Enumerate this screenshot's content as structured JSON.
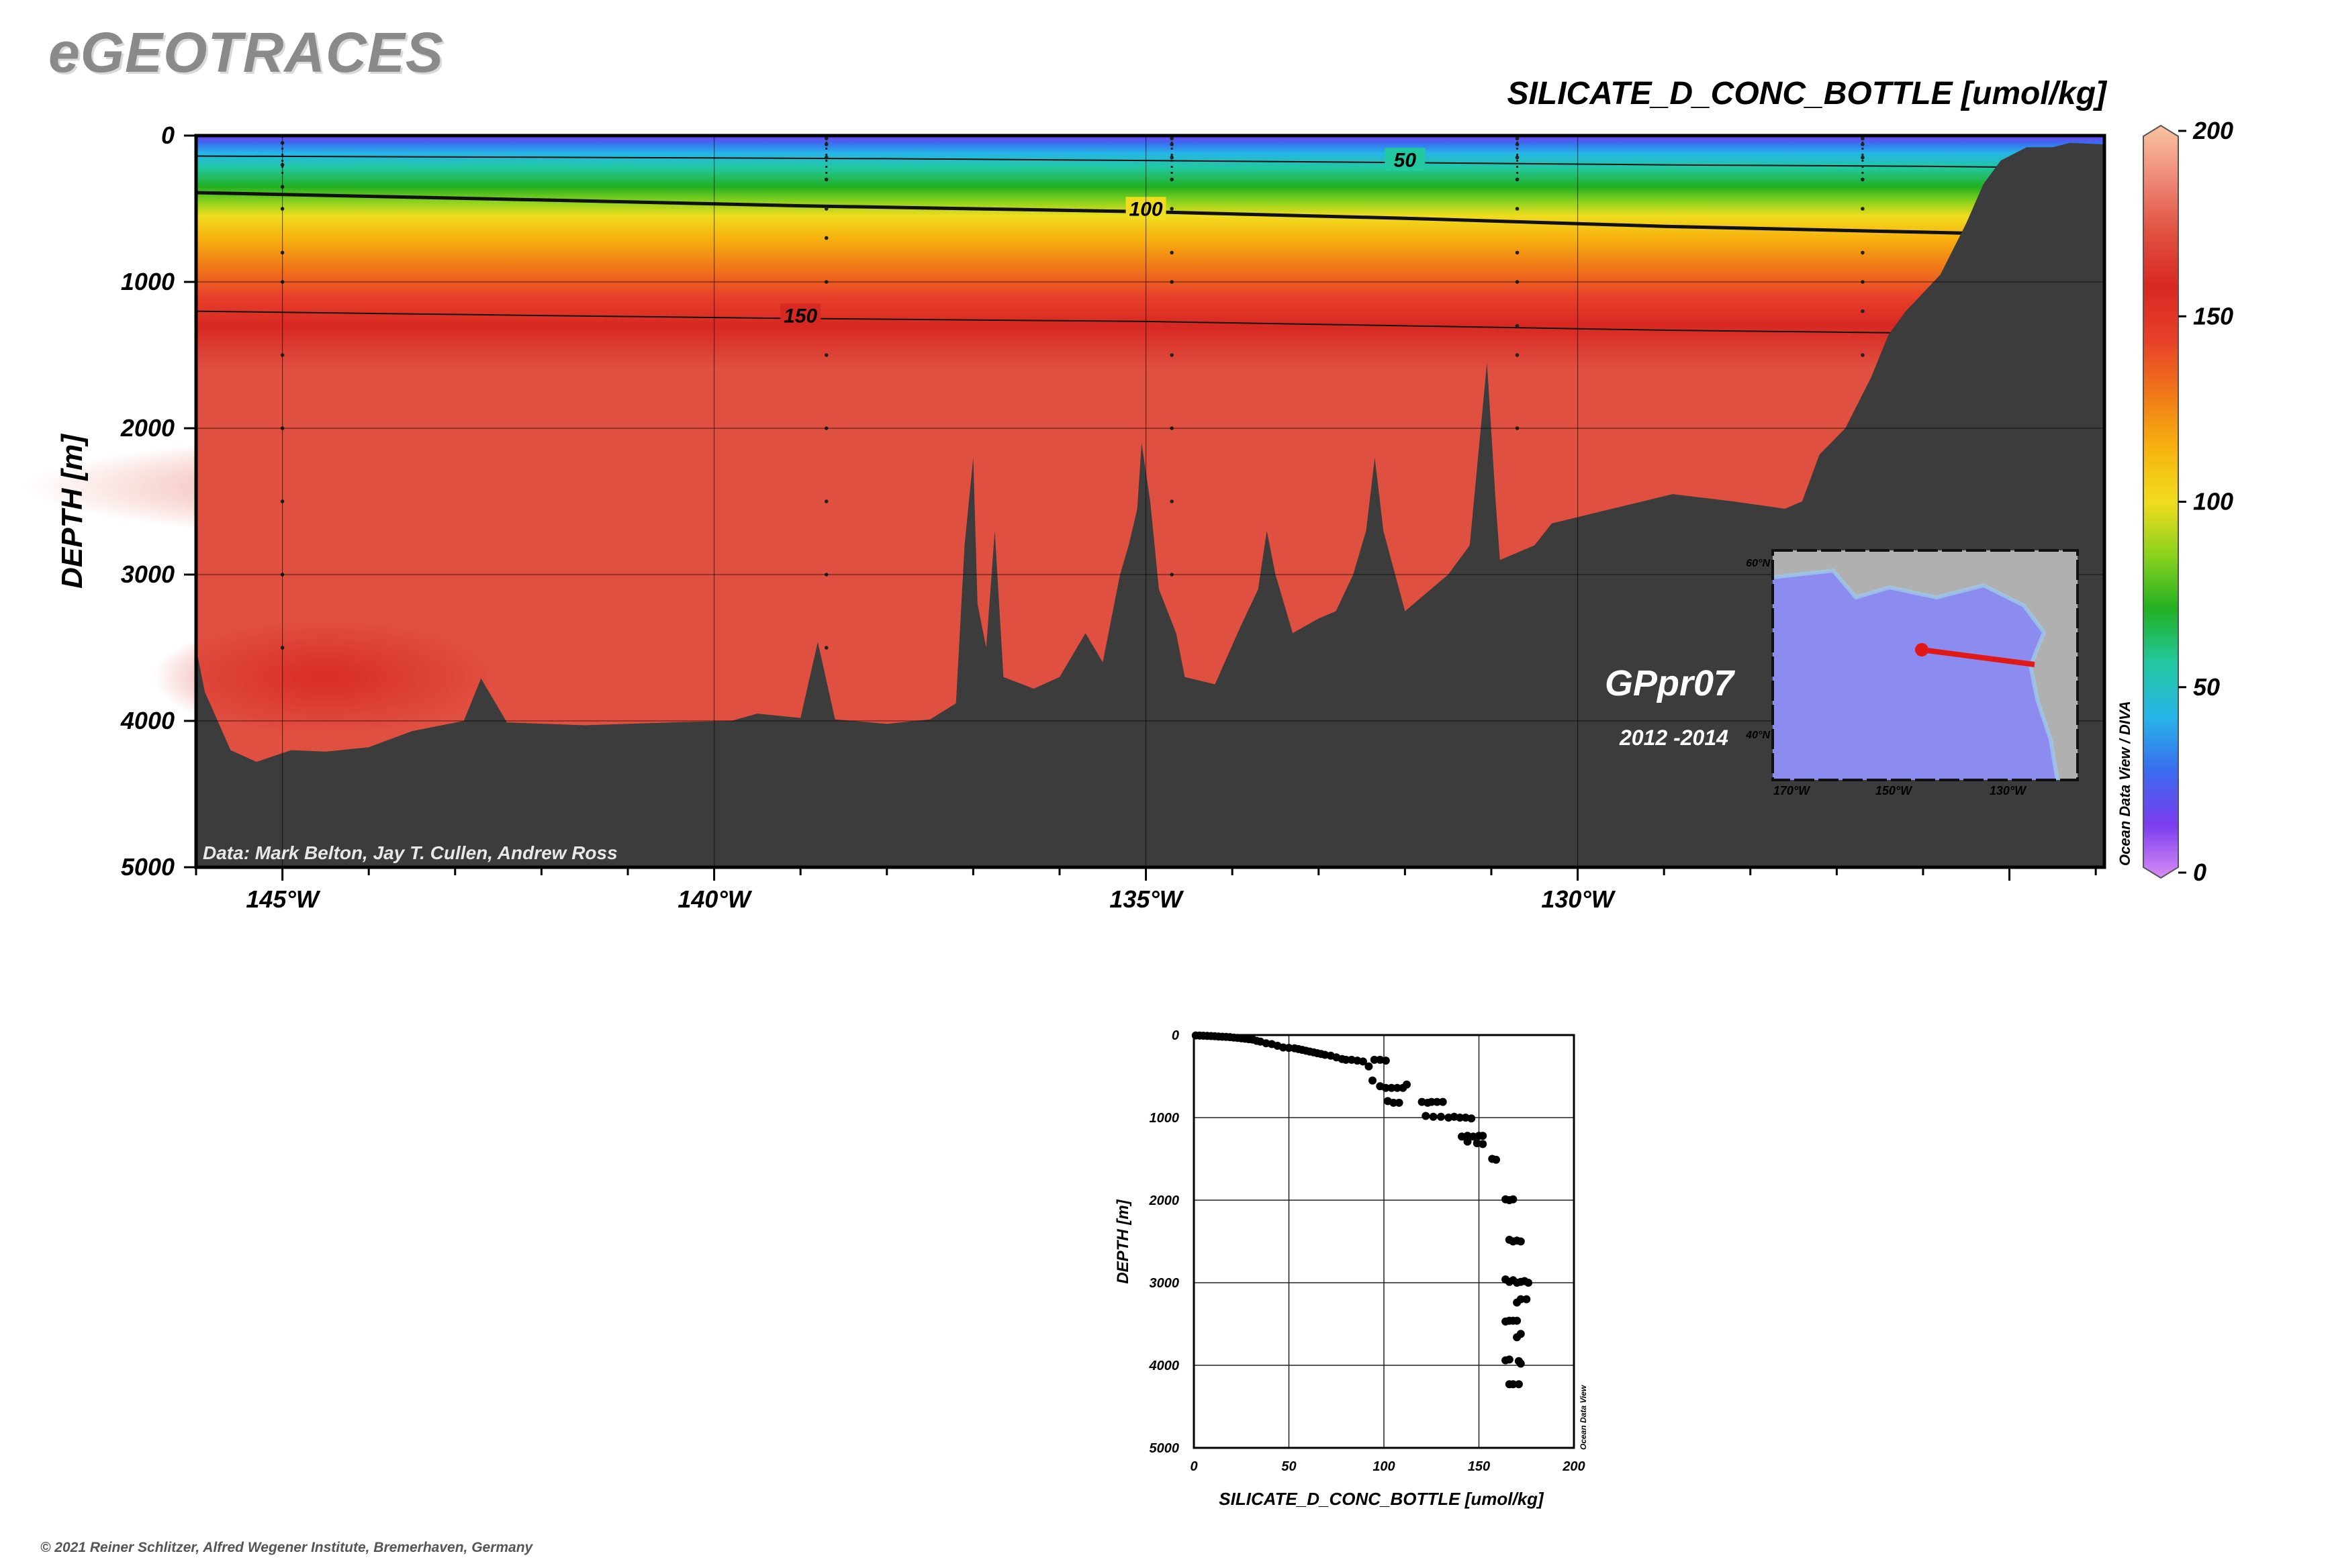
{
  "brand": "eGEOTRACES",
  "copyright": "© 2021 Reiner Schlitzer, Alfred Wegener Institute, Bremerhaven, Germany",
  "chart_data": [
    {
      "type": "heatmap",
      "title": "SILICATE_D_CONC_BOTTLE [umol/kg]",
      "ylabel": "DEPTH [m]",
      "xlabel": "",
      "xlim": [
        -146.0,
        -123.9
      ],
      "ylim": [
        5000,
        0
      ],
      "xticks": [
        -145,
        -140,
        -135,
        -130
      ],
      "xtick_labels": [
        "145°W",
        "140°W",
        "135°W",
        "130°W"
      ],
      "yticks": [
        0,
        1000,
        2000,
        3000,
        4000,
        5000
      ],
      "ytick_labels": [
        "0",
        "1000",
        "2000",
        "3000",
        "4000",
        "5000"
      ],
      "grid": true,
      "colorbar": {
        "min": 0,
        "max": 200,
        "ticks": [
          0,
          50,
          100,
          150,
          200
        ],
        "tick_labels": [
          "0",
          "50",
          "100",
          "150",
          "200"
        ],
        "colors": [
          "#d98cf5",
          "#7a3cf0",
          "#3a6cf0",
          "#26b5e8",
          "#22c8a0",
          "#22b022",
          "#8ad21e",
          "#f0dc1e",
          "#f7b20f",
          "#f07818",
          "#e8402a",
          "#d82822",
          "#e05040",
          "#ef8878",
          "#f8c4a0"
        ]
      },
      "contours": [
        {
          "value": 50,
          "label": "50",
          "points": [
            [
              -146.0,
              140
            ],
            [
              -142,
              148
            ],
            [
              -138,
              158
            ],
            [
              -135,
              170
            ],
            [
              -132,
              185
            ],
            [
              -129,
              200
            ],
            [
              -126,
              210
            ],
            [
              -124.1,
              220
            ]
          ]
        },
        {
          "value": 100,
          "label": "100",
          "points": [
            [
              -146.0,
              390
            ],
            [
              -142,
              440
            ],
            [
              -139,
              480
            ],
            [
              -135,
              520
            ],
            [
              -132,
              565
            ],
            [
              -129,
              620
            ],
            [
              -126,
              660
            ],
            [
              -124.6,
              680
            ]
          ]
        },
        {
          "value": 150,
          "label": "150",
          "points": [
            [
              -146.0,
              1200
            ],
            [
              -142,
              1230
            ],
            [
              -139,
              1250
            ],
            [
              -135,
              1270
            ],
            [
              -132,
              1300
            ],
            [
              -129,
              1330
            ],
            [
              -126,
              1350
            ],
            [
              -124.4,
              1360
            ]
          ]
        }
      ],
      "gradient_depths": [
        0,
        50,
        120,
        220,
        350,
        450,
        550,
        700,
        900,
        1100,
        1300,
        1600,
        2000,
        2800,
        3500,
        4500
      ],
      "gradient_values": [
        12,
        30,
        45,
        60,
        75,
        90,
        100,
        118,
        135,
        148,
        158,
        168,
        172,
        168,
        166,
        168
      ],
      "bathymetry": [
        [
          -146.0,
          3500
        ],
        [
          -145.9,
          3800
        ],
        [
          -145.6,
          4200
        ],
        [
          -145.3,
          4280
        ],
        [
          -144.9,
          4200
        ],
        [
          -144.5,
          4210
        ],
        [
          -144,
          4180
        ],
        [
          -143.5,
          4070
        ],
        [
          -142.9,
          4000
        ],
        [
          -142.7,
          3710
        ],
        [
          -142.4,
          4010
        ],
        [
          -141.5,
          4030
        ],
        [
          -140.5,
          4010
        ],
        [
          -139.8,
          4000
        ],
        [
          -139.5,
          3950
        ],
        [
          -139.0,
          3980
        ],
        [
          -138.8,
          3460
        ],
        [
          -138.6,
          3990
        ],
        [
          -138.0,
          4020
        ],
        [
          -137.5,
          3990
        ],
        [
          -137.2,
          3880
        ],
        [
          -137.1,
          2800
        ],
        [
          -137.0,
          2200
        ],
        [
          -136.95,
          3200
        ],
        [
          -136.85,
          3500
        ],
        [
          -136.75,
          2700
        ],
        [
          -136.65,
          3700
        ],
        [
          -136.3,
          3780
        ],
        [
          -136.0,
          3700
        ],
        [
          -135.7,
          3400
        ],
        [
          -135.5,
          3600
        ],
        [
          -135.3,
          3000
        ],
        [
          -135.2,
          2800
        ],
        [
          -135.1,
          2550
        ],
        [
          -135.05,
          2100
        ],
        [
          -134.95,
          2500
        ],
        [
          -134.85,
          3100
        ],
        [
          -134.65,
          3400
        ],
        [
          -134.55,
          3700
        ],
        [
          -134.2,
          3750
        ],
        [
          -133.9,
          3350
        ],
        [
          -133.7,
          3100
        ],
        [
          -133.6,
          2700
        ],
        [
          -133.5,
          3000
        ],
        [
          -133.3,
          3400
        ],
        [
          -133.0,
          3300
        ],
        [
          -132.8,
          3250
        ],
        [
          -132.6,
          3000
        ],
        [
          -132.45,
          2700
        ],
        [
          -132.35,
          2200
        ],
        [
          -132.25,
          2700
        ],
        [
          -132.0,
          3250
        ],
        [
          -131.5,
          3000
        ],
        [
          -131.25,
          2800
        ],
        [
          -131.05,
          1550
        ],
        [
          -130.95,
          2500
        ],
        [
          -130.9,
          2900
        ],
        [
          -130.5,
          2800
        ],
        [
          -130.3,
          2650
        ],
        [
          -129.6,
          2550
        ],
        [
          -128.9,
          2450
        ],
        [
          -128.2,
          2500
        ],
        [
          -127.6,
          2550
        ],
        [
          -127.4,
          2500
        ],
        [
          -127.2,
          2180
        ],
        [
          -126.9,
          2000
        ],
        [
          -126.6,
          1650
        ],
        [
          -126.4,
          1360
        ],
        [
          -126.2,
          1200
        ],
        [
          -125.8,
          950
        ],
        [
          -125.5,
          600
        ],
        [
          -125.3,
          330
        ],
        [
          -125.1,
          170
        ],
        [
          -124.8,
          80
        ],
        [
          -124.5,
          80
        ],
        [
          -124.3,
          50
        ],
        [
          -123.9,
          60
        ]
      ],
      "stations": [
        -145.0,
        -138.7,
        -134.7,
        -130.7,
        -126.7
      ],
      "station_depths": [
        [
          50,
          200,
          350,
          500,
          800,
          1000,
          1500,
          2000,
          2500,
          3000,
          3500
        ],
        [
          20,
          60,
          150,
          300,
          500,
          700,
          1000,
          1500,
          2000,
          2500,
          3000,
          3500
        ],
        [
          20,
          60,
          150,
          300,
          500,
          800,
          1000,
          1500,
          2000,
          2500,
          3000
        ],
        [
          20,
          60,
          150,
          300,
          500,
          800,
          1000,
          1300,
          1500,
          2000
        ],
        [
          20,
          60,
          150,
          300,
          500,
          800,
          1000,
          1200,
          1500
        ]
      ],
      "annotations": {
        "cruise": "GPpr07",
        "years": "2012 -2014",
        "credit": "Data: Mark Belton, Jay T. Cullen, Andrew Ross",
        "side_label": "Ocean Data View / DIVA"
      },
      "inset_map": {
        "xtick_labels": [
          "170°W",
          "150°W",
          "130°W"
        ],
        "ytick_labels": [
          "60°N",
          "40°N"
        ],
        "track_color": "#e01818",
        "ocean_color": "#8c8cf0",
        "land_color": "#b0b0b0"
      }
    },
    {
      "type": "scatter",
      "title": "",
      "xlabel": "SILICATE_D_CONC_BOTTLE [umol/kg]",
      "ylabel": "DEPTH [m]",
      "xlim": [
        0,
        200
      ],
      "ylim": [
        5000,
        0
      ],
      "xticks": [
        0,
        50,
        100,
        150,
        200
      ],
      "yticks": [
        0,
        1000,
        2000,
        3000,
        4000,
        5000
      ],
      "grid": true,
      "side_label": "Ocean Data View",
      "points": [
        [
          1,
          5
        ],
        [
          3,
          6
        ],
        [
          5,
          8
        ],
        [
          7,
          10
        ],
        [
          9,
          12
        ],
        [
          11,
          15
        ],
        [
          13,
          18
        ],
        [
          15,
          20
        ],
        [
          17,
          22
        ],
        [
          19,
          25
        ],
        [
          21,
          30
        ],
        [
          23,
          35
        ],
        [
          25,
          40
        ],
        [
          27,
          45
        ],
        [
          29,
          50
        ],
        [
          31,
          55
        ],
        [
          33,
          70
        ],
        [
          35,
          80
        ],
        [
          38,
          100
        ],
        [
          41,
          110
        ],
        [
          44,
          130
        ],
        [
          47,
          150
        ],
        [
          50,
          155
        ],
        [
          53,
          160
        ],
        [
          55,
          170
        ],
        [
          57,
          180
        ],
        [
          59,
          190
        ],
        [
          61,
          200
        ],
        [
          63,
          210
        ],
        [
          65,
          220
        ],
        [
          67,
          230
        ],
        [
          69,
          240
        ],
        [
          72,
          250
        ],
        [
          75,
          270
        ],
        [
          78,
          290
        ],
        [
          80,
          300
        ],
        [
          83,
          300
        ],
        [
          86,
          310
        ],
        [
          89,
          320
        ],
        [
          92,
          380
        ],
        [
          95,
          300
        ],
        [
          98,
          300
        ],
        [
          101,
          310
        ],
        [
          94,
          550
        ],
        [
          98,
          620
        ],
        [
          101,
          640
        ],
        [
          104,
          640
        ],
        [
          107,
          640
        ],
        [
          110,
          640
        ],
        [
          102,
          800
        ],
        [
          105,
          820
        ],
        [
          108,
          820
        ],
        [
          112,
          600
        ],
        [
          120,
          810
        ],
        [
          123,
          820
        ],
        [
          125,
          810
        ],
        [
          128,
          810
        ],
        [
          131,
          810
        ],
        [
          122,
          980
        ],
        [
          126,
          990
        ],
        [
          130,
          990
        ],
        [
          134,
          1000
        ],
        [
          137,
          990
        ],
        [
          140,
          1000
        ],
        [
          143,
          1000
        ],
        [
          146,
          1010
        ],
        [
          141,
          1230
        ],
        [
          144,
          1220
        ],
        [
          147,
          1230
        ],
        [
          150,
          1220
        ],
        [
          152,
          1220
        ],
        [
          144,
          1290
        ],
        [
          149,
          1310
        ],
        [
          152,
          1320
        ],
        [
          157,
          1500
        ],
        [
          159,
          1510
        ],
        [
          164,
          1990
        ],
        [
          166,
          2000
        ],
        [
          168,
          1990
        ],
        [
          166,
          2480
        ],
        [
          168,
          2500
        ],
        [
          170,
          2490
        ],
        [
          172,
          2500
        ],
        [
          164,
          2960
        ],
        [
          166,
          2990
        ],
        [
          168,
          2970
        ],
        [
          170,
          3000
        ],
        [
          172,
          2990
        ],
        [
          174,
          2980
        ],
        [
          176,
          3000
        ],
        [
          172,
          3200
        ],
        [
          175,
          3200
        ],
        [
          170,
          3240
        ],
        [
          166,
          3460
        ],
        [
          168,
          3460
        ],
        [
          170,
          3460
        ],
        [
          164,
          3470
        ],
        [
          172,
          3620
        ],
        [
          170,
          3660
        ],
        [
          164,
          3940
        ],
        [
          166,
          3930
        ],
        [
          171,
          3950
        ],
        [
          172,
          3980
        ],
        [
          166,
          4230
        ],
        [
          168,
          4230
        ],
        [
          171,
          4230
        ]
      ]
    }
  ]
}
